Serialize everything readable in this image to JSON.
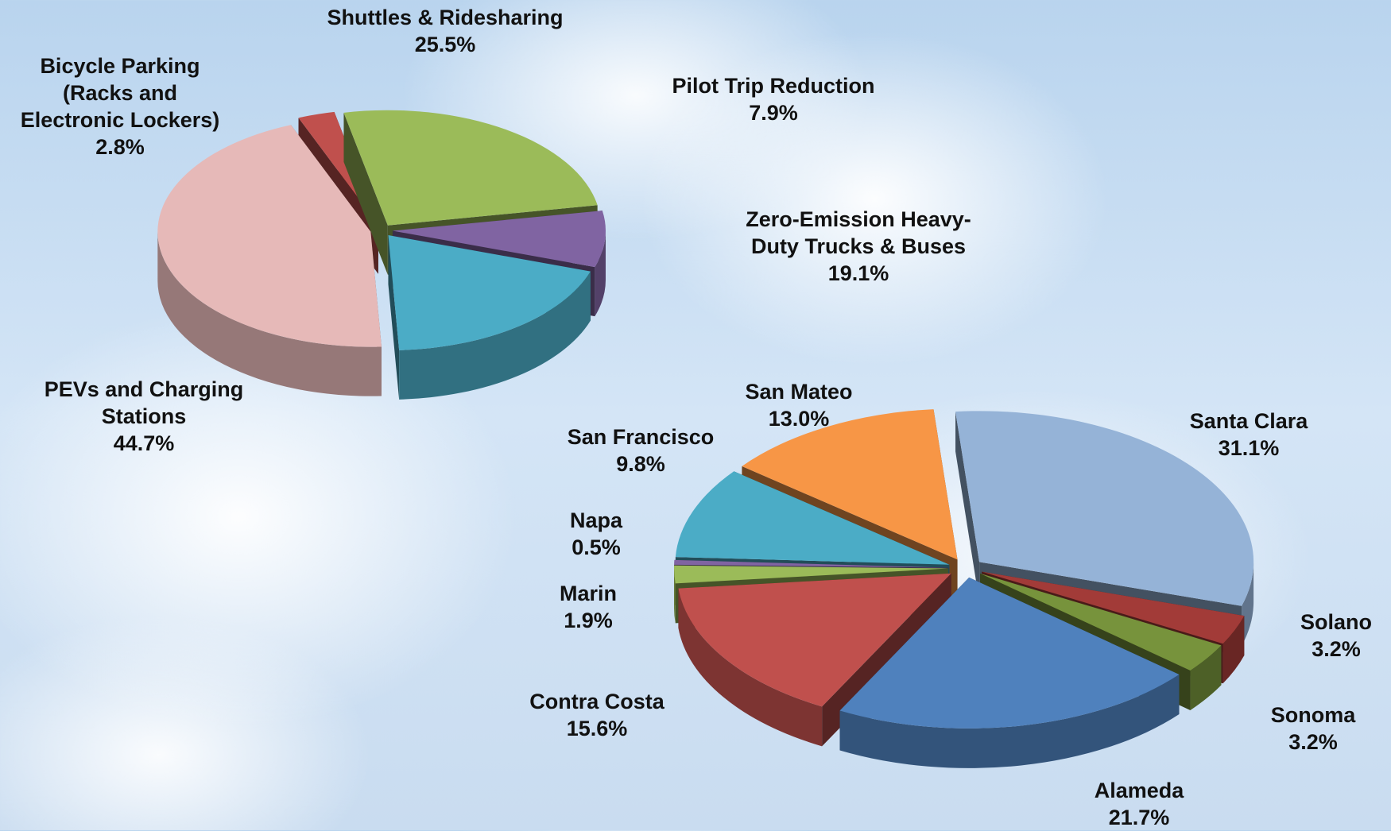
{
  "chart_data": [
    {
      "type": "pie",
      "categories": [
        "Bicycle Parking (Racks and Electronic Lockers)",
        "Shuttles & Ridesharing",
        "Pilot Trip Reduction",
        "Zero-Emission Heavy-Duty Trucks & Buses",
        "PEVs and Charging Stations"
      ],
      "values": [
        2.8,
        25.5,
        7.9,
        19.1,
        44.7
      ],
      "value_labels": [
        "2.8%",
        "25.5%",
        "7.9%",
        "19.1%",
        "44.7%"
      ],
      "colors": [
        "#c0504d",
        "#9bbb59",
        "#8064a2",
        "#4bacc6",
        "#e6b9b8"
      ]
    },
    {
      "type": "pie",
      "categories": [
        "Santa Clara",
        "Solano",
        "Sonoma",
        "Alameda",
        "Contra Costa",
        "Marin",
        "Napa",
        "San Francisco",
        "San Mateo"
      ],
      "values": [
        31.1,
        3.2,
        3.2,
        21.7,
        15.6,
        1.9,
        0.5,
        9.8,
        13.0
      ],
      "value_labels": [
        "31.1%",
        "3.2%",
        "3.2%",
        "21.7%",
        "15.6%",
        "1.9%",
        "0.5%",
        "9.8%",
        "13.0%"
      ],
      "colors": [
        "#95b3d7",
        "#a23b38",
        "#77933c",
        "#4f81bd",
        "#c0504d",
        "#9bbb59",
        "#8064a2",
        "#4bacc6",
        "#f79646"
      ]
    }
  ]
}
